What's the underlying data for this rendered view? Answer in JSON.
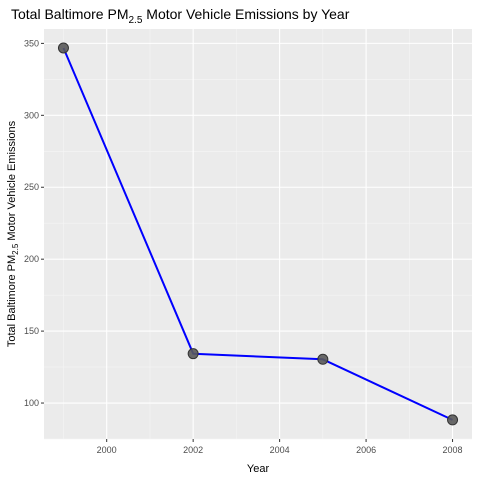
{
  "chart_data": {
    "type": "line",
    "title": {
      "prefix": "Total Baltimore  PM",
      "subscript": "2.5",
      "suffix": " Motor Vehicle Emissions by Year"
    },
    "xlabel": "Year",
    "ylabel": {
      "prefix": "Total Baltimore PM",
      "subscript": "2.5",
      "suffix": " Motor Vehicle Emissions"
    },
    "x": [
      1999,
      2002,
      2005,
      2008
    ],
    "series": [
      {
        "values": [
          346.82,
          134.31,
          130.43,
          88.28
        ]
      }
    ],
    "xlim": [
      1998.55,
      2008.45
    ],
    "ylim": [
      75,
      360
    ],
    "x_ticks": [
      2000,
      2002,
      2004,
      2006,
      2008
    ],
    "y_ticks": [
      100,
      150,
      200,
      250,
      300,
      350
    ],
    "grid": true,
    "legend": "none",
    "colors": {
      "panel": "#ebebeb",
      "grid_major": "#ffffff",
      "line": "#0000ff",
      "point_fill": "#595959",
      "point_stroke": "#333333"
    }
  }
}
